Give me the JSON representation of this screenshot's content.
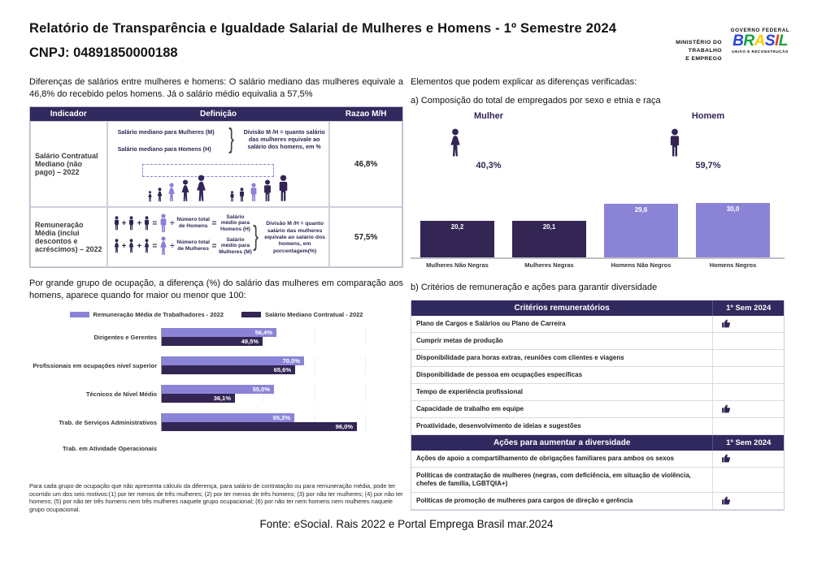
{
  "meta": {
    "title": "Relatório de Transparência e Igualdade Salarial de Mulheres e Homens - 1º Semestre 2024",
    "cnpj": "CNPJ: 04891850000188"
  },
  "logos": {
    "ministry": {
      "line1": "MINISTÉRIO DO",
      "line2": "TRABALHO",
      "line3": "E EMPREGO"
    },
    "gov_top": "GOVERNO FEDERAL",
    "brasil_letters": [
      "B",
      "R",
      "A",
      "S",
      "I",
      "L"
    ],
    "gov_bottom": "UNIÃO E RECONSTRUÇÃO"
  },
  "left": {
    "intro": "Diferenças de salários entre mulheres e homens: O salário mediano das mulheres equivale a 46,8% do recebido pelos homens. Já o salário médio equivalia a 57,5%",
    "table": {
      "headers": [
        "Indicador",
        "Definição",
        "Razao M/H"
      ],
      "rows": [
        {
          "indicator": "Salário Contratual Mediano (não pago) – 2022",
          "def_line1": "Salário mediano para Mulheres (M)",
          "def_line2": "Salário mediano para Homens (H)",
          "def_note": "Divisão M /H = quanto salário das mulheres equivale ao salário dos homens, em %",
          "ratio": "46,8%"
        },
        {
          "indicator": "Remuneração Média (inclui descontos e acréscimos) – 2022",
          "eq1_num": "Número total de Homens",
          "eq1_sal": "Salário médio para Homens (H)",
          "eq2_num": "Número total de Mulheres",
          "eq2_sal": "Salário médio para Mulheres (M)",
          "def_note": "Divisão M /H = quanto salário das mulheres equivale ao salário dos homens, em porcentagem(%)",
          "ratio": "57,5%"
        }
      ]
    },
    "ops": {
      "plus": "+",
      "equals": "=",
      "divide": "÷"
    },
    "occupation_intro": "Por grande grupo de ocupação, a diferença (%) do salário das mulheres em comparação aos homens, aparece quando for maior ou menor que 100:",
    "footnote": "Para cada grupo de ocupação que não apresenta cálculo da diferença, para salário de contratação ou para remuneração média, pode ter ocorrido um dos seis motivos:(1) por ter menos de três mulheres; (2) por ter menos de três homens; (3) por não ter mulheres; (4) por não ter homens; (5) por não ter três homens nem três mulheres naquele grupo ocupacional; (6) por não ter nem homens nem mulheres naquele grupo ocupacional."
  },
  "right": {
    "heading": "Elementos que podem explicar as diferenças verificadas:",
    "sub_a": "a) Composição do total de empregados por sexo e etnia e raça",
    "gender": {
      "mulher_label": "Mulher",
      "mulher_pct": "40,3%",
      "homem_label": "Homem",
      "homem_pct": "59,7%"
    },
    "sub_b": "b) Critérios de remuneração e ações para garantir diversidade",
    "table": {
      "header_criteria": "Critérios remuneratórios",
      "header_actions": "Ações para aumentar a diversidade",
      "period": "1º Sem 2024",
      "criteria_rows": [
        {
          "label": "Plano de Cargos e Salários ou Plano de Carreira",
          "checked": true
        },
        {
          "label": "Cumprir metas de produção",
          "checked": false
        },
        {
          "label": "Disponibilidade para horas extras, reuniões com clientes e viagens",
          "checked": false
        },
        {
          "label": "Disponibilidade de pessoa em ocupações específicas",
          "checked": false
        },
        {
          "label": "Tempo de experiência profissional",
          "checked": false
        },
        {
          "label": "Capacidade de trabalho em equipe",
          "checked": true
        },
        {
          "label": "Proatividade, desenvolvimento de ideias e sugestões",
          "checked": false
        }
      ],
      "action_rows": [
        {
          "label": "Ações de apoio a compartilhamento de obrigações familiares para ambos os sexos",
          "checked": true
        },
        {
          "label": "Políticas de contratação de mulheres (negras, com deficiência, em situação de violência, chefes de família, LGBTQIA+)",
          "checked": false
        },
        {
          "label": "Políticas de promoção de mulheres para cargos de direção e gerência",
          "checked": true
        }
      ]
    }
  },
  "footer": {
    "fonte": "Fonte: eSocial. Rais 2022 e Portal Emprega Brasil mar.2024"
  },
  "colors": {
    "dark_purple": "#332554",
    "header_purple": "#312a5e",
    "light_purple": "#8b84d6",
    "figure_light": "#8b7fd6",
    "baseline_gray": "#c0c0c4"
  },
  "chart_data": [
    {
      "type": "bar",
      "title": "a) Composição do total de empregados por sexo e etnia e raça",
      "categories": [
        "Mulheres Não Negras",
        "Mulheres Negras",
        "Homens Não Negros",
        "Homens Negros"
      ],
      "values": [
        20.2,
        20.1,
        29.6,
        30.0
      ],
      "labels": [
        "20,2",
        "20,1",
        "29,6",
        "30,0"
      ],
      "bar_colors": [
        "#332554",
        "#332554",
        "#8b84d6",
        "#8b84d6"
      ],
      "ylim": [
        0,
        33
      ],
      "grid": false,
      "annotations": {
        "mulher_total": "40,3%",
        "homem_total": "59,7%"
      }
    },
    {
      "type": "bar-horizontal",
      "categories": [
        "Dirigentes e Gerentes",
        "Profissionais em ocupações nível superior",
        "Técnicos de Nível Médio",
        "Trab. de Serviços Administrativos",
        "Trab. em Atividade Operacionais"
      ],
      "series": [
        {
          "name": "Remuneração Média de Trabalhadores - 2022",
          "color": "#8b84d6",
          "values": [
            56.4,
            70.0,
            55.0,
            65.3,
            null
          ],
          "labels": [
            "56,4%",
            "70,0%",
            "55,0%",
            "65,3%",
            ""
          ]
        },
        {
          "name": "Salário Mediano Contratual - 2022",
          "color": "#332554",
          "values": [
            49.5,
            65.6,
            36.1,
            96.0,
            null
          ],
          "labels": [
            "49,5%",
            "65,6%",
            "36,1%",
            "96,0%",
            ""
          ]
        }
      ],
      "xlim": [
        0,
        100
      ],
      "legend_position": "top",
      "grid": true
    }
  ]
}
